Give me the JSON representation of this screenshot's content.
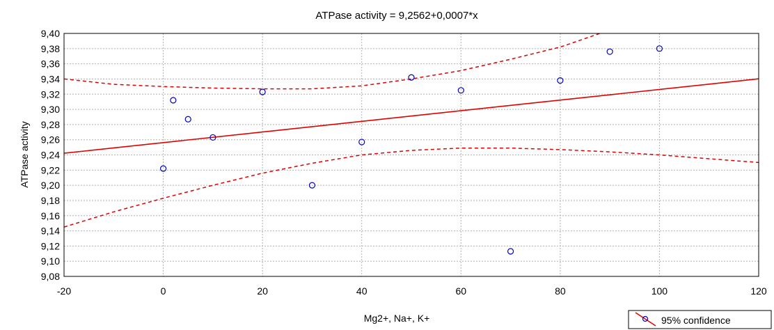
{
  "chart_data": {
    "type": "scatter",
    "title": "ATPase activity = 9,2562+0,0007*x",
    "xlabel": "Mg2+, Na+, K+",
    "ylabel": "ATPase activity",
    "xlim": [
      -20,
      120
    ],
    "ylim": [
      9.08,
      9.4
    ],
    "x_ticks": [
      "-20",
      "0",
      "20",
      "40",
      "60",
      "80",
      "100",
      "120"
    ],
    "y_ticks": [
      "9,08",
      "9,10",
      "9,12",
      "9,14",
      "9,16",
      "9,18",
      "9,20",
      "9,22",
      "9,24",
      "9,26",
      "9,28",
      "9,30",
      "9,32",
      "9,34",
      "9,36",
      "9,38",
      "9,40"
    ],
    "grid": true,
    "points": {
      "x": [
        0,
        2,
        5,
        10,
        20,
        30,
        40,
        50,
        60,
        70,
        80,
        90,
        100
      ],
      "y": [
        9.222,
        9.312,
        9.287,
        9.263,
        9.323,
        9.2,
        9.257,
        9.342,
        9.325,
        9.113,
        9.338,
        9.376,
        9.38
      ]
    },
    "regression": {
      "intercept": 9.2562,
      "slope": 0.0007
    },
    "confidence_upper": {
      "x": [
        -20,
        -10,
        0,
        10,
        20,
        30,
        40,
        50,
        60,
        70,
        80,
        88
      ],
      "y": [
        9.34,
        9.333,
        9.33,
        9.328,
        9.327,
        9.327,
        9.331,
        9.34,
        9.351,
        9.366,
        9.382,
        9.4
      ]
    },
    "confidence_lower": {
      "x": [
        -20,
        -10,
        0,
        10,
        20,
        30,
        40,
        50,
        60,
        70,
        80,
        90,
        100,
        110,
        120
      ],
      "y": [
        9.145,
        9.165,
        9.183,
        9.2,
        9.216,
        9.229,
        9.24,
        9.246,
        9.249,
        9.249,
        9.247,
        9.244,
        9.24,
        9.235,
        9.23
      ]
    },
    "colors": {
      "line": "#e00000",
      "points": "#0000cc",
      "grid": "#b0b0b0"
    },
    "legend": {
      "label": "95% confidence",
      "position": "bottom-right"
    }
  }
}
